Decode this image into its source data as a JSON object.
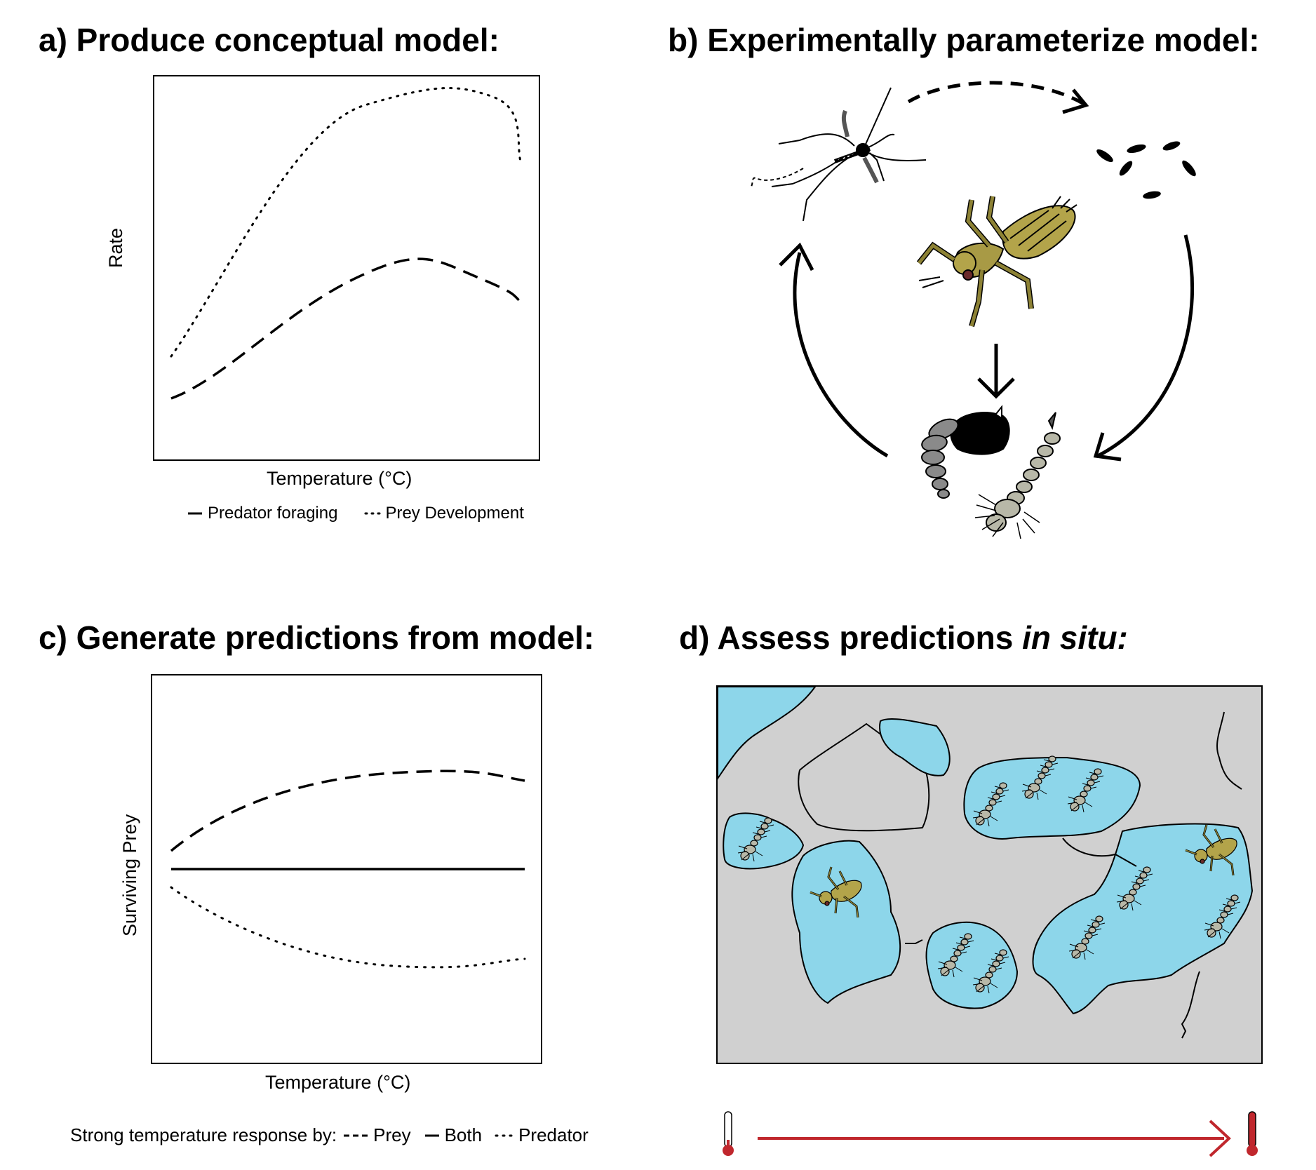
{
  "panels": {
    "a": {
      "title": "a) Produce conceptual model:",
      "ylabel": "Rate",
      "xlabel": "Temperature (°C)",
      "legend": [
        {
          "label": "Predator foraging",
          "style": "dashed"
        },
        {
          "label": "Prey Development",
          "style": "dotted"
        }
      ]
    },
    "b": {
      "title": "b) Experimentally parameterize model:",
      "icons": [
        "adult-mosquito-icon",
        "eggs-icon",
        "stonefly-nymph-predator-icon",
        "pupa-icon",
        "larva-icon"
      ]
    },
    "c": {
      "title": "c) Generate predictions from model:",
      "ylabel": "Surviving Prey",
      "xlabel": "Temperature (°C)",
      "legend_prefix": "Strong temperature response by:",
      "legend": [
        {
          "label": "Prey",
          "style": "dashed"
        },
        {
          "label": "Both",
          "style": "solid"
        },
        {
          "label": "Predator",
          "style": "dotted"
        }
      ]
    },
    "d": {
      "title_main": "d) Assess predictions ",
      "title_italic": "in situ:",
      "colors": {
        "rock": "#d0d0d0",
        "pool": "#8dd6ea",
        "thermometer": "#c0272d"
      }
    }
  }
}
